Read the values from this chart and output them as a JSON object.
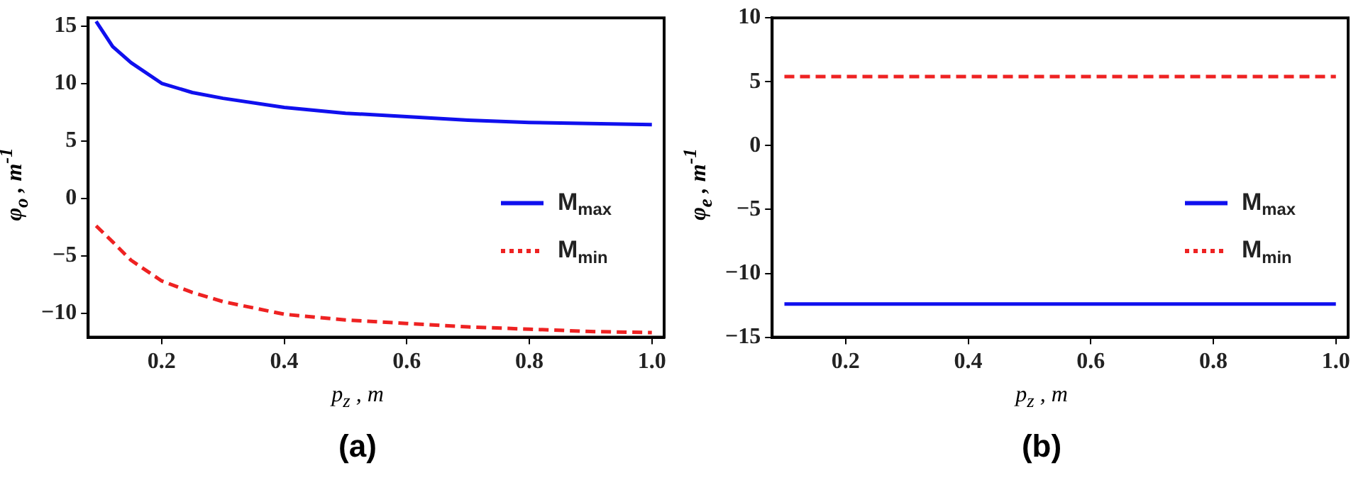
{
  "chart_data": [
    {
      "type": "line",
      "xlabel": "p$_{z}$ , m",
      "ylabel": "φ$_{o}$ , m$^{-1}$",
      "annotations": [
        "(a)"
      ],
      "xlim": [
        0.08,
        1.02
      ],
      "xticks": [
        0.2,
        0.4,
        0.6,
        0.8,
        {
          "value": 1,
          "label": "1.0"
        }
      ],
      "ylim": [
        -12.1,
        15.7
      ],
      "yticks": [
        {
          "value": -10,
          "label": "−10"
        },
        {
          "value": -5,
          "label": "−5"
        },
        0,
        5,
        10,
        15
      ],
      "legend": "right",
      "marker": "none",
      "grid": false,
      "series": [
        {
          "name": "M$_{max}$",
          "color": "#1010ee",
          "line_style": "solid",
          "x": [
            0.093,
            0.12,
            0.15,
            0.2,
            0.25,
            0.3,
            0.4,
            0.5,
            0.6,
            0.7,
            0.8,
            0.9,
            1.0
          ],
          "values": [
            15.4,
            13.2,
            11.8,
            10.0,
            9.2,
            8.7,
            7.9,
            7.4,
            7.1,
            6.8,
            6.6,
            6.5,
            6.4
          ]
        },
        {
          "name": "M$_{min}$",
          "color": "#ee2222",
          "line_style": "dashed",
          "x": [
            0.093,
            0.12,
            0.15,
            0.2,
            0.25,
            0.3,
            0.4,
            0.5,
            0.6,
            0.7,
            0.8,
            0.9,
            1.0
          ],
          "values": [
            -2.4,
            -3.8,
            -5.4,
            -7.2,
            -8.2,
            -9.0,
            -10.1,
            -10.6,
            -10.9,
            -11.2,
            -11.4,
            -11.6,
            -11.7
          ]
        }
      ]
    },
    {
      "type": "line",
      "xlabel": "p$_{z}$ , m",
      "ylabel": "φ$_{e}$ , m$^{-1}$",
      "annotations": [
        "(b)"
      ],
      "xlim": [
        0.08,
        1.02
      ],
      "xticks": [
        0.2,
        0.4,
        0.6,
        0.8,
        {
          "value": 1,
          "label": "1.0"
        }
      ],
      "ylim": [
        -15,
        10
      ],
      "yticks": [
        {
          "value": -15,
          "label": "−15"
        },
        {
          "value": -10,
          "label": "−10"
        },
        {
          "value": -5,
          "label": "−5"
        },
        0,
        5,
        10
      ],
      "legend": "right",
      "marker": "none",
      "grid": false,
      "series": [
        {
          "name": "M$_{max}$",
          "color": "#1010ee",
          "line_style": "solid",
          "x": [
            0.1,
            1.0
          ],
          "values": [
            -12.4,
            -12.4
          ]
        },
        {
          "name": "M$_{min}$",
          "color": "#ee2222",
          "line_style": "dashed",
          "x": [
            0.1,
            1.0
          ],
          "values": [
            5.4,
            5.4
          ]
        }
      ]
    }
  ]
}
